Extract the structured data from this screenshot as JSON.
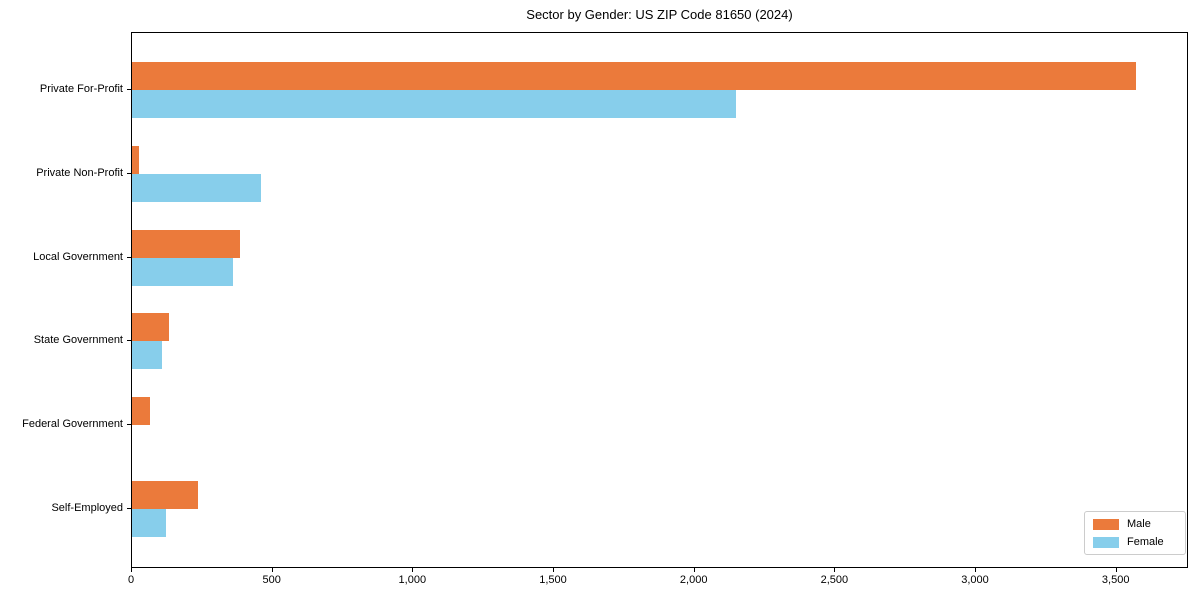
{
  "title": "Sector by Gender: US ZIP Code 81650 (2024)",
  "colors": {
    "male": "#EB7A3B",
    "female": "#87CEEB",
    "axis": "#000000",
    "legend_border": "#CCCCCC",
    "background": "#FFFFFF"
  },
  "legend": {
    "position": "lower right",
    "items": [
      {
        "label": "Male",
        "color": "#EB7A3B"
      },
      {
        "label": "Female",
        "color": "#87CEEB"
      }
    ]
  },
  "chart_data": {
    "type": "bar",
    "orientation": "horizontal",
    "title": "Sector by Gender: US ZIP Code 81650 (2024)",
    "categories": [
      "Private For-Profit",
      "Private Non-Profit",
      "Local Government",
      "State Government",
      "Federal Government",
      "Self-Employed"
    ],
    "series": [
      {
        "name": "Male",
        "color": "#EB7A3B",
        "values": [
          3570,
          25,
          385,
          130,
          65,
          235
        ]
      },
      {
        "name": "Female",
        "color": "#87CEEB",
        "values": [
          2145,
          460,
          360,
          105,
          0,
          120
        ]
      }
    ],
    "xlabel": "",
    "ylabel": "",
    "xlim": [
      0,
      3757
    ],
    "x_ticks": [
      0,
      500,
      1000,
      1500,
      2000,
      2500,
      3000,
      3500
    ],
    "x_tick_labels": [
      "0",
      "500",
      "1,000",
      "1,500",
      "2,000",
      "2,500",
      "3,000",
      "3,500"
    ],
    "grid": false,
    "legend_position": "lower right"
  }
}
